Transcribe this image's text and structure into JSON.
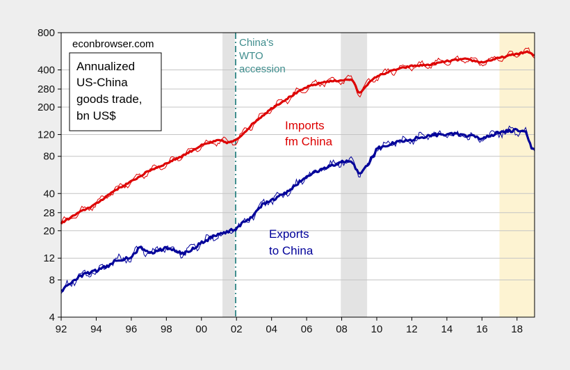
{
  "chart_data": {
    "type": "line",
    "source_label": "econbrowser.com",
    "title_lines": [
      "Annualized",
      "US-China",
      "goods trade,",
      "bn US$"
    ],
    "y_scale": "log",
    "ylim": [
      4,
      800
    ],
    "y_ticks": [
      4,
      8,
      12,
      20,
      28,
      40,
      80,
      120,
      200,
      280,
      400,
      800
    ],
    "x_range": [
      1992.0,
      2019.0
    ],
    "x_ticks": [
      {
        "value": 1992,
        "label": "92"
      },
      {
        "value": 1994,
        "label": "94"
      },
      {
        "value": 1996,
        "label": "96"
      },
      {
        "value": 1998,
        "label": "98"
      },
      {
        "value": 2000,
        "label": "00"
      },
      {
        "value": 2002,
        "label": "02"
      },
      {
        "value": 2004,
        "label": "04"
      },
      {
        "value": 2006,
        "label": "06"
      },
      {
        "value": 2008,
        "label": "08"
      },
      {
        "value": 2010,
        "label": "10"
      },
      {
        "value": 2012,
        "label": "12"
      },
      {
        "value": 2014,
        "label": "14"
      },
      {
        "value": 2016,
        "label": "16"
      },
      {
        "value": 2018,
        "label": "18"
      }
    ],
    "grid": true,
    "shaded_periods": [
      {
        "start": 2001.2,
        "end": 2001.9,
        "color": "#e3e3e3"
      },
      {
        "start": 2007.95,
        "end": 2009.45,
        "color": "#e3e3e3"
      },
      {
        "start": 2017.0,
        "end": 2019.0,
        "color": "#fdf3d2"
      }
    ],
    "event_line": {
      "x": 2001.95,
      "label_lines": [
        "China's",
        "WTO",
        "accession"
      ],
      "color": "#3f8d8d"
    },
    "series": [
      {
        "name": "Imports fm China",
        "label_lines": [
          "Imports",
          "fm China"
        ],
        "color": "#dd0000",
        "x": [
          1992.0,
          1993.0,
          1994.0,
          1995.0,
          1996.0,
          1997.0,
          1998.0,
          1999.0,
          2000.0,
          2001.0,
          2001.5,
          2002.0,
          2003.0,
          2004.0,
          2005.0,
          2006.0,
          2007.0,
          2008.0,
          2008.6,
          2009.0,
          2009.4,
          2010.0,
          2011.0,
          2012.0,
          2013.0,
          2014.0,
          2015.0,
          2016.0,
          2017.0,
          2018.0,
          2018.6,
          2019.0
        ],
        "values": [
          23,
          28,
          33,
          42,
          50,
          61,
          70,
          82,
          98,
          108,
          103,
          108,
          150,
          195,
          240,
          290,
          320,
          330,
          335,
          255,
          300,
          355,
          400,
          430,
          440,
          470,
          490,
          460,
          500,
          540,
          560,
          520
        ]
      },
      {
        "name": "Exports to China",
        "label_lines": [
          "Exports",
          "to China"
        ],
        "color": "#000099",
        "x": [
          1992.0,
          1992.5,
          1993.0,
          1994.0,
          1994.8,
          1995.0,
          1996.0,
          1996.5,
          1997.0,
          1998.0,
          1998.5,
          1999.0,
          2000.0,
          2001.0,
          2001.5,
          2002.0,
          2003.0,
          2003.5,
          2004.0,
          2005.0,
          2006.0,
          2007.0,
          2008.0,
          2008.6,
          2009.0,
          2009.5,
          2010.0,
          2011.0,
          2012.0,
          2013.0,
          2014.0,
          2015.0,
          2016.0,
          2017.0,
          2018.0,
          2018.5,
          2018.8,
          2019.0
        ],
        "values": [
          6.5,
          7.5,
          8.5,
          9.5,
          10.5,
          11.5,
          12.0,
          15.0,
          13.0,
          14.5,
          14.0,
          13.0,
          16.0,
          19.0,
          19.5,
          21.0,
          27.0,
          33.0,
          35.0,
          42.0,
          55.0,
          64.0,
          72.0,
          73.0,
          57.0,
          68.0,
          92.0,
          103.0,
          110.0,
          118.0,
          122.0,
          118.0,
          112.0,
          125.0,
          130.0,
          125.0,
          95.0,
          90.0
        ]
      }
    ]
  }
}
